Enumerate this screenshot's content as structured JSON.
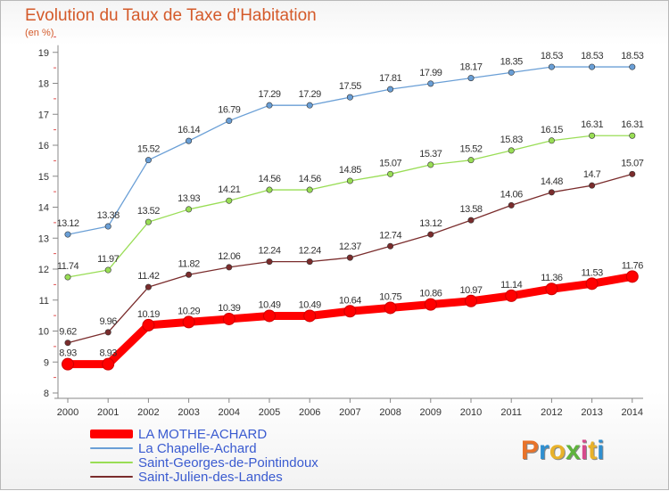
{
  "header": {
    "title": "Evolution du Taux de Taxe d’Habitation",
    "subtitle": "(en %)"
  },
  "brand": {
    "text": "Proxiti"
  },
  "chart_data": {
    "type": "line",
    "title": "Evolution du Taux de Taxe d’Habitation",
    "ylabel": "(en %)",
    "xlabel": "",
    "x": [
      "2000",
      "2001",
      "2002",
      "2003",
      "2004",
      "2005",
      "2006",
      "2007",
      "2008",
      "2009",
      "2010",
      "2011",
      "2012",
      "2013",
      "2014"
    ],
    "yticks": [
      8,
      9,
      10,
      11,
      12,
      13,
      14,
      15,
      16,
      17,
      18,
      19
    ],
    "ylim": [
      8,
      19
    ],
    "grid": false,
    "legend_position": "bottom-left",
    "series": [
      {
        "name": "LA MOTHE-ACHARD",
        "color": "#ff0000",
        "emphasis": true,
        "values": [
          8.93,
          8.93,
          10.19,
          10.29,
          10.39,
          10.49,
          10.49,
          10.64,
          10.75,
          10.86,
          10.97,
          11.14,
          11.36,
          11.53,
          11.76
        ]
      },
      {
        "name": "La Chapelle-Achard",
        "color": "#6a9fd6",
        "values": [
          13.12,
          13.38,
          15.52,
          16.14,
          16.79,
          17.29,
          17.29,
          17.55,
          17.81,
          17.99,
          18.17,
          18.35,
          18.53,
          18.53,
          18.53
        ]
      },
      {
        "name": "Saint-Georges-de-Pointindoux",
        "color": "#99dd55",
        "values": [
          11.74,
          11.97,
          13.52,
          13.93,
          14.21,
          14.56,
          14.56,
          14.85,
          15.07,
          15.37,
          15.52,
          15.83,
          16.15,
          16.31,
          16.31
        ]
      },
      {
        "name": "Saint-Julien-des-Landes",
        "color": "#7a2c2c",
        "values": [
          9.62,
          9.96,
          11.42,
          11.82,
          12.06,
          12.24,
          12.24,
          12.37,
          12.74,
          13.12,
          13.58,
          14.06,
          14.48,
          14.7,
          15.07
        ]
      }
    ]
  }
}
